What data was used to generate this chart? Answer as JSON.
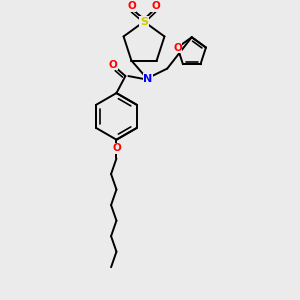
{
  "bg_color": "#ebebeb",
  "atom_colors": {
    "C": "#000000",
    "N": "#0000ff",
    "O": "#ff0000",
    "S": "#cccc00"
  },
  "line_color": "#000000",
  "line_width": 1.4,
  "figsize": [
    3.0,
    3.0
  ],
  "dpi": 100
}
